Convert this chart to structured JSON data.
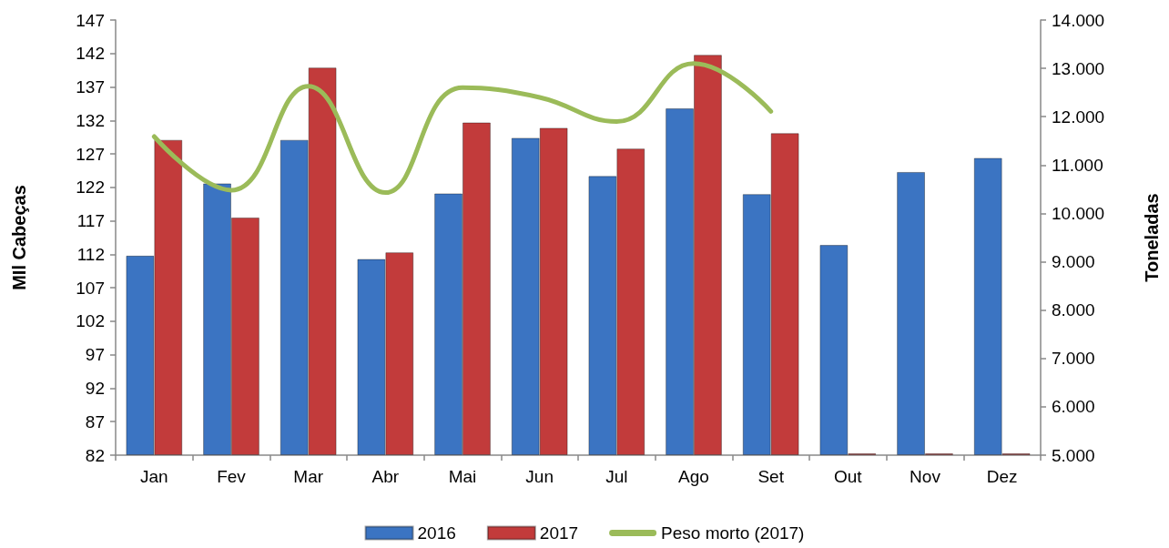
{
  "chart_data": {
    "type": "bar",
    "categories": [
      "Jan",
      "Fev",
      "Mar",
      "Abr",
      "Mai",
      "Jun",
      "Jul",
      "Ago",
      "Set",
      "Out",
      "Nov",
      "Dez"
    ],
    "ylabel": "MIl Cabeças",
    "y2label": "Toneladas",
    "ylim": [
      82,
      147
    ],
    "yticks": [
      82,
      87,
      92,
      97,
      102,
      107,
      112,
      117,
      122,
      127,
      132,
      137,
      142,
      147
    ],
    "y2lim": [
      5000,
      14000
    ],
    "y2ticks": [
      {
        "value": 5000,
        "label": "5.000"
      },
      {
        "value": 6000,
        "label": "6.000"
      },
      {
        "value": 7000,
        "label": "7.000"
      },
      {
        "value": 8000,
        "label": "8.000"
      },
      {
        "value": 9000,
        "label": "9.000"
      },
      {
        "value": 10000,
        "label": "10.000"
      },
      {
        "value": 11000,
        "label": "11.000"
      },
      {
        "value": 12000,
        "label": "12.000"
      },
      {
        "value": 13000,
        "label": "13.000"
      },
      {
        "value": 14000,
        "label": "14.000"
      }
    ],
    "series": [
      {
        "name": "2016",
        "color": "#3b74c2",
        "values": [
          111.8,
          122.6,
          129.1,
          111.3,
          121.1,
          129.4,
          123.7,
          133.8,
          121.0,
          113.4,
          124.3,
          126.4
        ]
      },
      {
        "name": "2017",
        "color": "#c23b3b",
        "values": [
          129.1,
          117.5,
          139.9,
          112.3,
          131.7,
          130.9,
          127.8,
          141.8,
          130.1,
          82,
          82,
          82
        ]
      },
      {
        "name": "Peso morto (2017)",
        "type": "line",
        "axis": "y2",
        "color": "#9bbb59",
        "values": [
          11590,
          10480,
          12630,
          10430,
          12600,
          12400,
          11900,
          13100,
          12110,
          null,
          null,
          null
        ]
      }
    ],
    "legend": "bottom",
    "grid": false,
    "marker": "none",
    "line_style": "solid"
  }
}
